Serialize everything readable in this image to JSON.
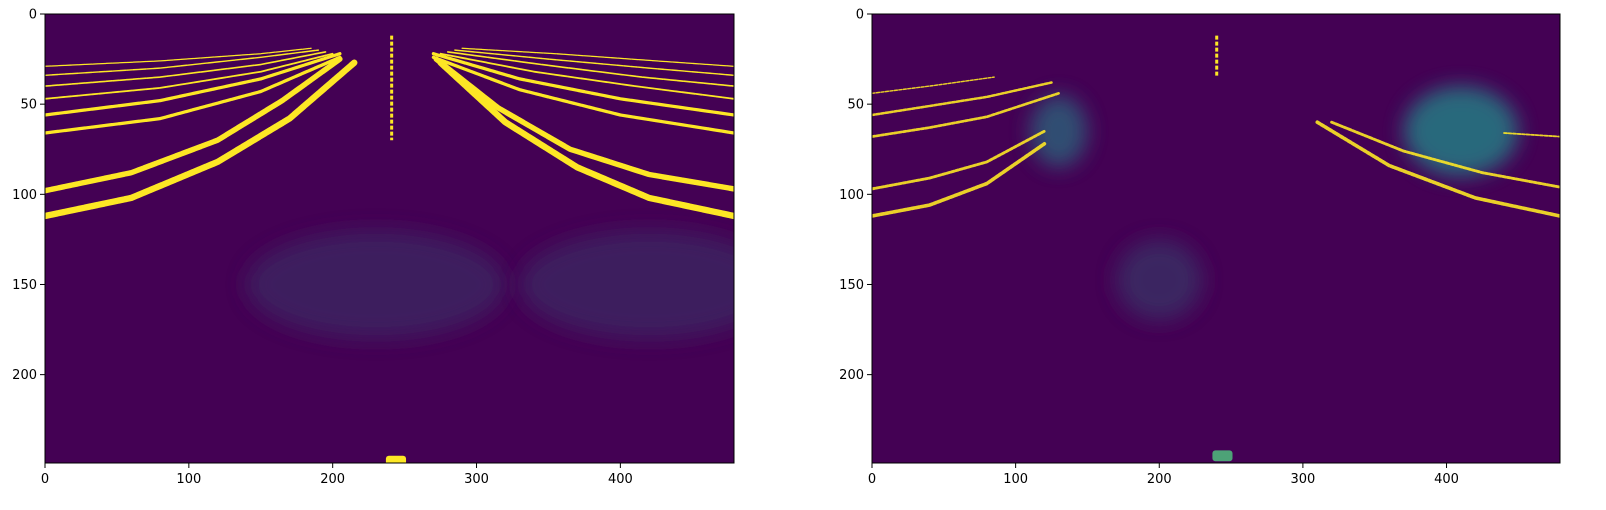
{
  "figure": {
    "background": "#ffffff",
    "colormap": {
      "name": "viridis",
      "dark": "#440154",
      "mid": "#21918c",
      "bright": "#fde725"
    }
  },
  "chart_data": [
    {
      "type": "heatmap",
      "name": "left-panel",
      "title": "",
      "xlabel": "",
      "ylabel": "",
      "xlim": [
        0,
        479
      ],
      "ylim": [
        249,
        0
      ],
      "x_ticks": [
        0,
        100,
        200,
        300,
        400
      ],
      "y_ticks": [
        0,
        50,
        100,
        150,
        200
      ],
      "x_tick_labels": [
        "0",
        "100",
        "200",
        "300",
        "400"
      ],
      "y_tick_labels": [
        "0",
        "50",
        "100",
        "150",
        "200"
      ],
      "grid": false,
      "features": {
        "left_lanes": [
          {
            "x": [
              0,
              60,
              120,
              170,
              215
            ],
            "y": [
              112,
              102,
              82,
              58,
              27
            ],
            "width": 3.5
          },
          {
            "x": [
              0,
              60,
              120,
              165,
              205
            ],
            "y": [
              98,
              88,
              70,
              48,
              25
            ],
            "width": 3.0
          },
          {
            "x": [
              0,
              80,
              150,
              205
            ],
            "y": [
              66,
              58,
              43,
              24
            ],
            "width": 1.8
          },
          {
            "x": [
              0,
              80,
              150,
              205
            ],
            "y": [
              56,
              48,
              36,
              22
            ],
            "width": 1.8
          },
          {
            "x": [
              0,
              80,
              150,
              200
            ],
            "y": [
              47,
              41,
              32,
              22
            ],
            "width": 1.0
          },
          {
            "x": [
              0,
              80,
              150,
              195
            ],
            "y": [
              40,
              35,
              28,
              21
            ],
            "width": 0.9
          },
          {
            "x": [
              0,
              80,
              150,
              190
            ],
            "y": [
              34,
              30,
              24,
              20
            ],
            "width": 0.8
          },
          {
            "x": [
              0,
              80,
              150,
              185
            ],
            "y": [
              29,
              26,
              22,
              19
            ],
            "width": 0.7
          }
        ],
        "right_lanes": [
          {
            "x": [
              275,
              320,
              370,
              420,
              479
            ],
            "y": [
              27,
              60,
              85,
              102,
              112
            ],
            "width": 3.5
          },
          {
            "x": [
              272,
              315,
              365,
              420,
              479
            ],
            "y": [
              25,
              52,
              75,
              89,
              97
            ],
            "width": 3.0
          },
          {
            "x": [
              270,
              330,
              400,
              479
            ],
            "y": [
              24,
              42,
              56,
              66
            ],
            "width": 1.8
          },
          {
            "x": [
              270,
              330,
              400,
              479
            ],
            "y": [
              22,
              36,
              47,
              56
            ],
            "width": 1.8
          },
          {
            "x": [
              275,
              340,
              410,
              479
            ],
            "y": [
              22,
              32,
              40,
              47
            ],
            "width": 1.0
          },
          {
            "x": [
              280,
              345,
              415,
              479
            ],
            "y": [
              21,
              28,
              35,
              40
            ],
            "width": 0.9
          },
          {
            "x": [
              285,
              350,
              420,
              479
            ],
            "y": [
              20,
              25,
              30,
              34
            ],
            "width": 0.8
          },
          {
            "x": [
              290,
              355,
              425,
              479
            ],
            "y": [
              19,
              22,
              26,
              29
            ],
            "width": 0.7
          }
        ],
        "pole": {
          "x": 241,
          "y": [
            12,
            70
          ]
        },
        "bright_blob": {
          "x": 237,
          "y": 245,
          "w": 14,
          "h": 8,
          "intensity": 1.0
        },
        "faint_regions": [
          {
            "x": 140,
            "y": 120,
            "w": 180,
            "h": 60,
            "intensity": 0.12
          },
          {
            "x": 330,
            "y": 120,
            "w": 180,
            "h": 60,
            "intensity": 0.12
          }
        ]
      }
    },
    {
      "type": "heatmap",
      "name": "right-panel",
      "title": "",
      "xlabel": "",
      "ylabel": "",
      "xlim": [
        0,
        479
      ],
      "ylim": [
        249,
        0
      ],
      "x_ticks": [
        0,
        100,
        200,
        300,
        400
      ],
      "y_ticks": [
        0,
        50,
        100,
        150,
        200
      ],
      "x_tick_labels": [
        "0",
        "100",
        "200",
        "300",
        "400"
      ],
      "y_tick_labels": [
        "0",
        "50",
        "100",
        "150",
        "200"
      ],
      "grid": false,
      "features": {
        "left_lanes": [
          {
            "x": [
              0,
              40,
              80,
              120
            ],
            "y": [
              112,
              106,
              94,
              72
            ],
            "width": 2.0
          },
          {
            "x": [
              0,
              40,
              80,
              120
            ],
            "y": [
              97,
              91,
              82,
              65
            ],
            "width": 1.6
          },
          {
            "x": [
              0,
              40,
              80,
              130
            ],
            "y": [
              68,
              63,
              57,
              44
            ],
            "width": 1.5
          },
          {
            "x": [
              0,
              40,
              80,
              125
            ],
            "y": [
              56,
              51,
              46,
              38
            ],
            "width": 1.4
          },
          {
            "x": [
              0,
              40,
              85
            ],
            "y": [
              44,
              40,
              35
            ],
            "width": 0.8
          }
        ],
        "right_lanes": [
          {
            "x": [
              310,
              360,
              420,
              479
            ],
            "y": [
              60,
              84,
              102,
              112
            ],
            "width": 2.0
          },
          {
            "x": [
              320,
              370,
              425,
              479
            ],
            "y": [
              60,
              76,
              88,
              96
            ],
            "width": 1.6
          },
          {
            "x": [
              440,
              479
            ],
            "y": [
              66,
              68
            ],
            "width": 1.0
          }
        ],
        "pole": {
          "x": 240,
          "y": [
            12,
            35
          ]
        },
        "bright_blob": {
          "x": 237,
          "y": 242,
          "w": 14,
          "h": 6,
          "intensity": 0.6
        },
        "faint_regions": [
          {
            "x": 110,
            "y": 45,
            "w": 40,
            "h": 40,
            "intensity": 0.3
          },
          {
            "x": 370,
            "y": 40,
            "w": 80,
            "h": 50,
            "intensity": 0.4
          },
          {
            "x": 170,
            "y": 125,
            "w": 60,
            "h": 45,
            "intensity": 0.14
          }
        ]
      }
    }
  ]
}
